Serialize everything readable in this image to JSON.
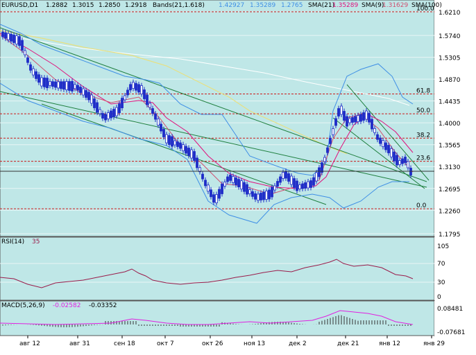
{
  "header": {
    "symbol": "EURUSD,D1",
    "ohlc": [
      "1.2882",
      "1.3015",
      "1.2850",
      "1.2918"
    ],
    "bands_label": "Bands(21,1.618)",
    "bands_values": [
      "1.42927",
      "1.35289",
      "1.2765"
    ],
    "sma21_label": "SMA(21)",
    "sma21_value": "1.35289",
    "sma9_label": "SMA(9)",
    "sma9_value": "1.31629",
    "sma100_label": "SMA(100)"
  },
  "colors": {
    "background": "#BFE7E7",
    "grid": "#E8F6F6",
    "candle": "#1E2CC8",
    "bands": "#3F8FE6",
    "sma21": "#E0107C",
    "sma9": "#D05070",
    "sma100_yellow": "#E8E080",
    "sma100_white": "#FFFFFF",
    "fib": "#CC1A1A",
    "channel": "#1E7F3E",
    "rsi_line": "#9A1B4A",
    "macd_line": "#E020E0"
  },
  "price_axis": [
    "1.6210",
    "1.5740",
    "1.5305",
    "1.4870",
    "1.4435",
    "1.4000",
    "1.3565",
    "1.3130",
    "1.2695",
    "1.2260",
    "1.1795"
  ],
  "fib_levels": [
    {
      "label": "100.0",
      "price": 1.621
    },
    {
      "label": "61.8",
      "price": 1.4575
    },
    {
      "label": "50.0",
      "price": 1.418
    },
    {
      "label": "38.2",
      "price": 1.3695
    },
    {
      "label": "23.6",
      "price": 1.3235
    },
    {
      "label": "0.0",
      "price": 1.229
    }
  ],
  "rsi": {
    "label": "RSI(14)",
    "value": "35",
    "axis": [
      "105",
      "70",
      "30",
      "0"
    ]
  },
  "macd": {
    "label": "MACD(5,26,9)",
    "main": "-0.02582",
    "signal": "-0.03352",
    "axis_top": "0.08481",
    "axis_bottom": "-0.07681"
  },
  "date_axis": [
    "авг 12",
    "авг 31",
    "сен 18",
    "окт 7",
    "окт 26",
    "ноя 13",
    "дек 2",
    "дек 21",
    "янв 12",
    "янв 29"
  ]
}
